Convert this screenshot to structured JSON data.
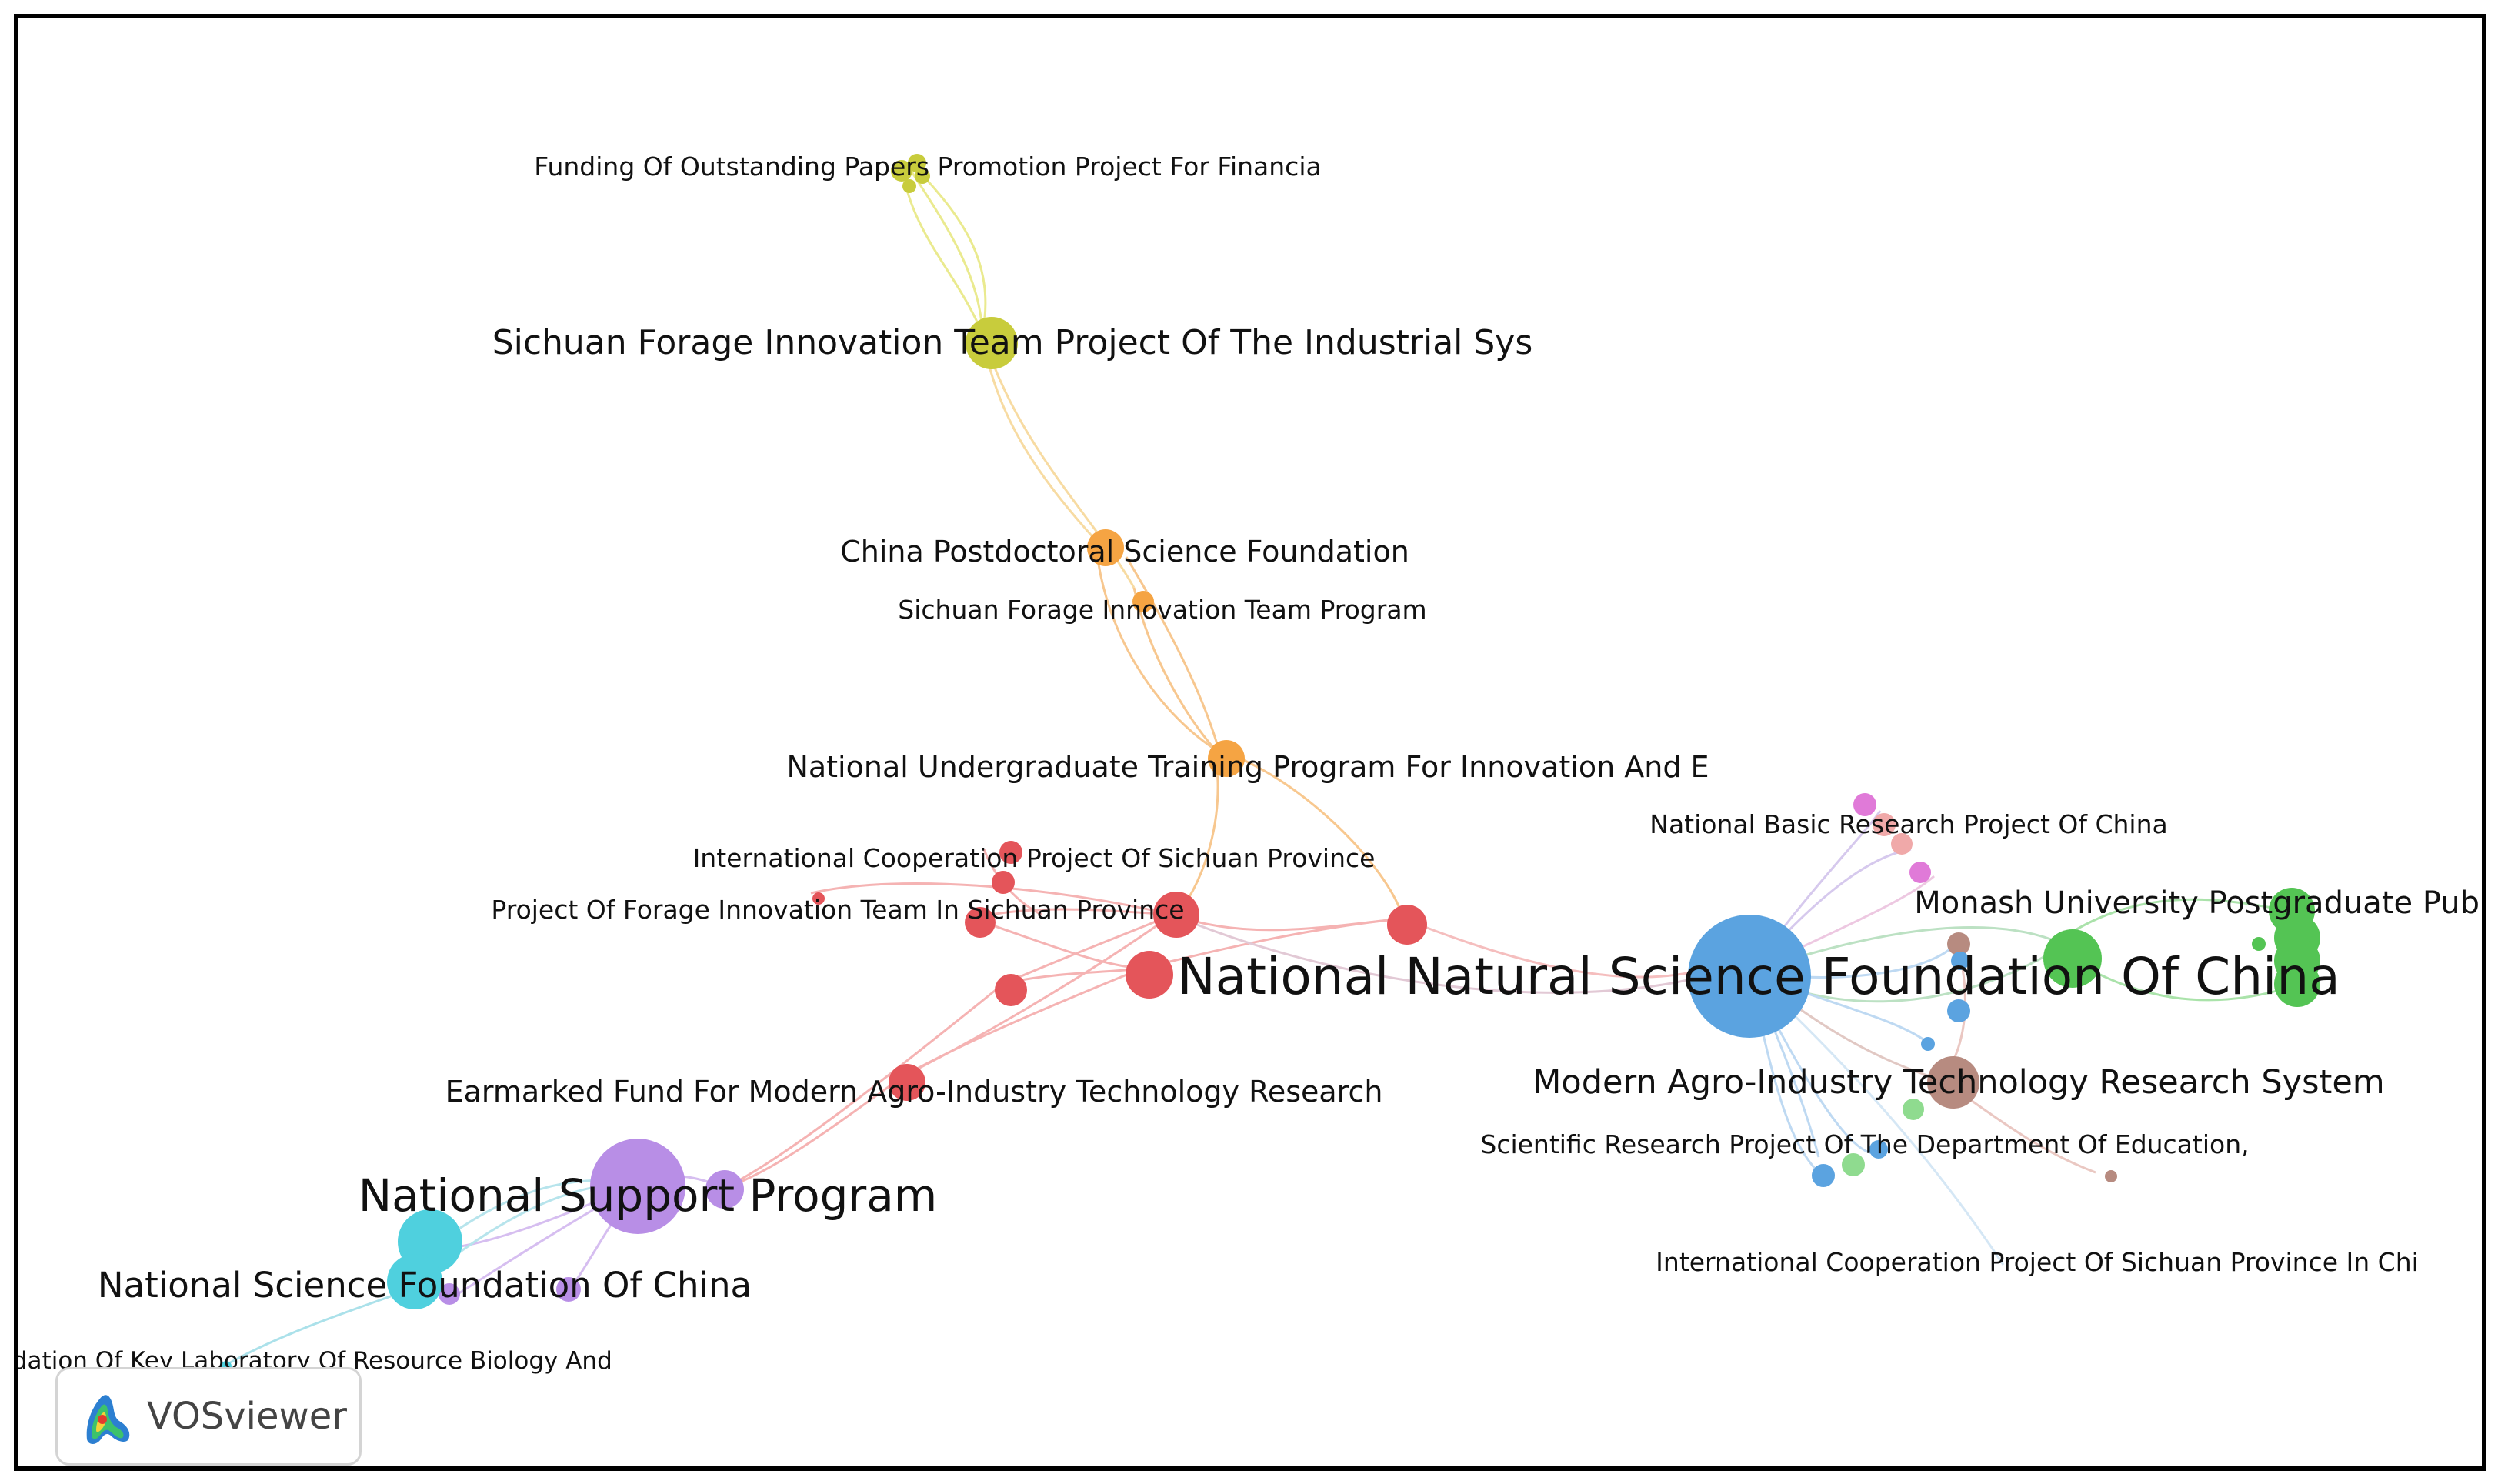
{
  "network": {
    "nodes": [
      {
        "id": "nnsfc",
        "label": "National Natural Science Foundation Of China",
        "color": "#5ba3e0",
        "size": 5
      },
      {
        "id": "nsp",
        "label": "National Support Program",
        "color": "#b88ee6",
        "size": 4
      },
      {
        "id": "nsf",
        "label": "National Science Foundation Of China",
        "color": "#4fd0de",
        "size": 3.5
      },
      {
        "id": "monash",
        "label": "Monash University Postgraduate Publica",
        "color": "#54c454",
        "size": 3
      },
      {
        "id": "modern",
        "label": "Modern Agro-Industry Technology Research System",
        "color": "#b78b80",
        "size": 3
      },
      {
        "id": "sfit",
        "label": "Sichuan Forage Innovation Team Project Of The Industrial Sys",
        "color": "#c8cc3c",
        "size": 3
      },
      {
        "id": "cpsf",
        "label": "China Postdoctoral Science Foundation",
        "color": "#f5a443",
        "size": 2.5
      },
      {
        "id": "nutp",
        "label": "National Undergraduate Training Program For Innovation And E",
        "color": "#f5a443",
        "size": 2.5
      },
      {
        "id": "earm",
        "label": "Earmarked Fund For Modern Agro-Industry Technology Research",
        "color": "#e4555a",
        "size": 2.5
      },
      {
        "id": "funding",
        "label": "Funding Of Outstanding Papers Promotion Project For Financia",
        "color": "#c8cc3c",
        "size": 1.5
      },
      {
        "id": "sfitp",
        "label": "Sichuan Forage Innovation Team Program",
        "color": "#f5a443",
        "size": 1.5
      },
      {
        "id": "icpsp",
        "label": "International Cooperation Project Of Sichuan Province",
        "color": "#e4555a",
        "size": 1.5
      },
      {
        "id": "pfit",
        "label": "Project Of Forage Innovation Team In Sichuan Province",
        "color": "#e4555a",
        "size": 1.5
      },
      {
        "id": "nbrp",
        "label": "National Basic Research Project Of China",
        "color": "#e07ad8",
        "size": 1.5
      },
      {
        "id": "srpde",
        "label": "Scientific Research Project Of The Department Of Education,",
        "color": "#5ba3e0",
        "size": 1.5
      },
      {
        "id": "icpspc",
        "label": "International Cooperation Project Of Sichuan Province In Chi",
        "color": "#5ba3e0",
        "size": 1.5
      },
      {
        "id": "fklrb",
        "label": "ndation Of Key Laboratory Of Resource Biology And",
        "color": "#4fd0de",
        "size": 1.5
      }
    ]
  },
  "brand": {
    "name": "VOSviewer"
  }
}
